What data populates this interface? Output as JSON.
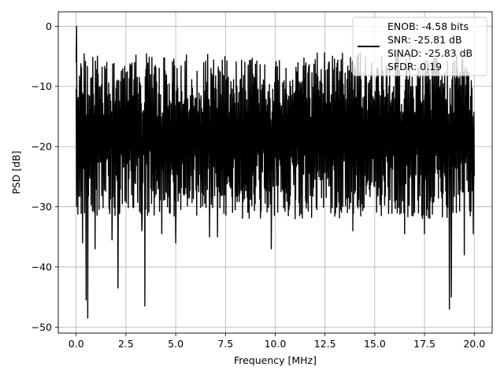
{
  "chart_data": {
    "type": "line",
    "title": "",
    "xlabel": "Frequency [MHz]",
    "ylabel": "PSD [dB]",
    "xlim": [
      -0.9,
      20.9
    ],
    "ylim": [
      -51.0,
      2.4
    ],
    "xticks": [
      0.0,
      2.5,
      5.0,
      7.5,
      10.0,
      12.5,
      15.0,
      17.5,
      20.0
    ],
    "xtick_labels": [
      "0.0",
      "2.5",
      "5.0",
      "7.5",
      "10.0",
      "12.5",
      "15.0",
      "17.5",
      "20.0"
    ],
    "yticks": [
      0,
      -10,
      -20,
      -30,
      -40,
      -50
    ],
    "ytick_labels": [
      "0",
      "−10",
      "−20",
      "−30",
      "−40",
      "−50"
    ],
    "grid": true,
    "legend_position": "upper-right",
    "legend_lines": [
      "ENOB: -4.58 bits",
      "SNR: -25.81 dB",
      "SINAD: -25.83 dB",
      "SFDR: 0.19"
    ],
    "series": [
      {
        "color": "#000000",
        "x_start": 0.0,
        "x_end": 20.0,
        "points": 1200,
        "peak": {
          "x": 0.02,
          "y": 0.0
        },
        "noise_floor_mean": -16,
        "upper_envelope": -4,
        "deep_nulls": [
          {
            "x": 0.32,
            "y": -36.0
          },
          {
            "x": 0.42,
            "y": -31.0
          },
          {
            "x": 0.5,
            "y": -45.5
          },
          {
            "x": 0.58,
            "y": -48.5
          },
          {
            "x": 0.95,
            "y": -37.0
          },
          {
            "x": 2.1,
            "y": -43.5
          },
          {
            "x": 1.8,
            "y": -35.5
          },
          {
            "x": 3.45,
            "y": -46.5
          },
          {
            "x": 3.3,
            "y": -34.0
          },
          {
            "x": 4.3,
            "y": -34.5
          },
          {
            "x": 5.0,
            "y": -36.0
          },
          {
            "x": 6.7,
            "y": -35.0
          },
          {
            "x": 7.1,
            "y": -35.0
          },
          {
            "x": 9.8,
            "y": -37.0
          },
          {
            "x": 11.0,
            "y": -32.0
          },
          {
            "x": 13.9,
            "y": -34.0
          },
          {
            "x": 16.5,
            "y": -34.5
          },
          {
            "x": 17.5,
            "y": -34.5
          },
          {
            "x": 18.75,
            "y": -47.0
          },
          {
            "x": 18.85,
            "y": -45.0
          },
          {
            "x": 19.5,
            "y": -38.0
          },
          {
            "x": 19.95,
            "y": -34.5
          }
        ]
      }
    ]
  }
}
